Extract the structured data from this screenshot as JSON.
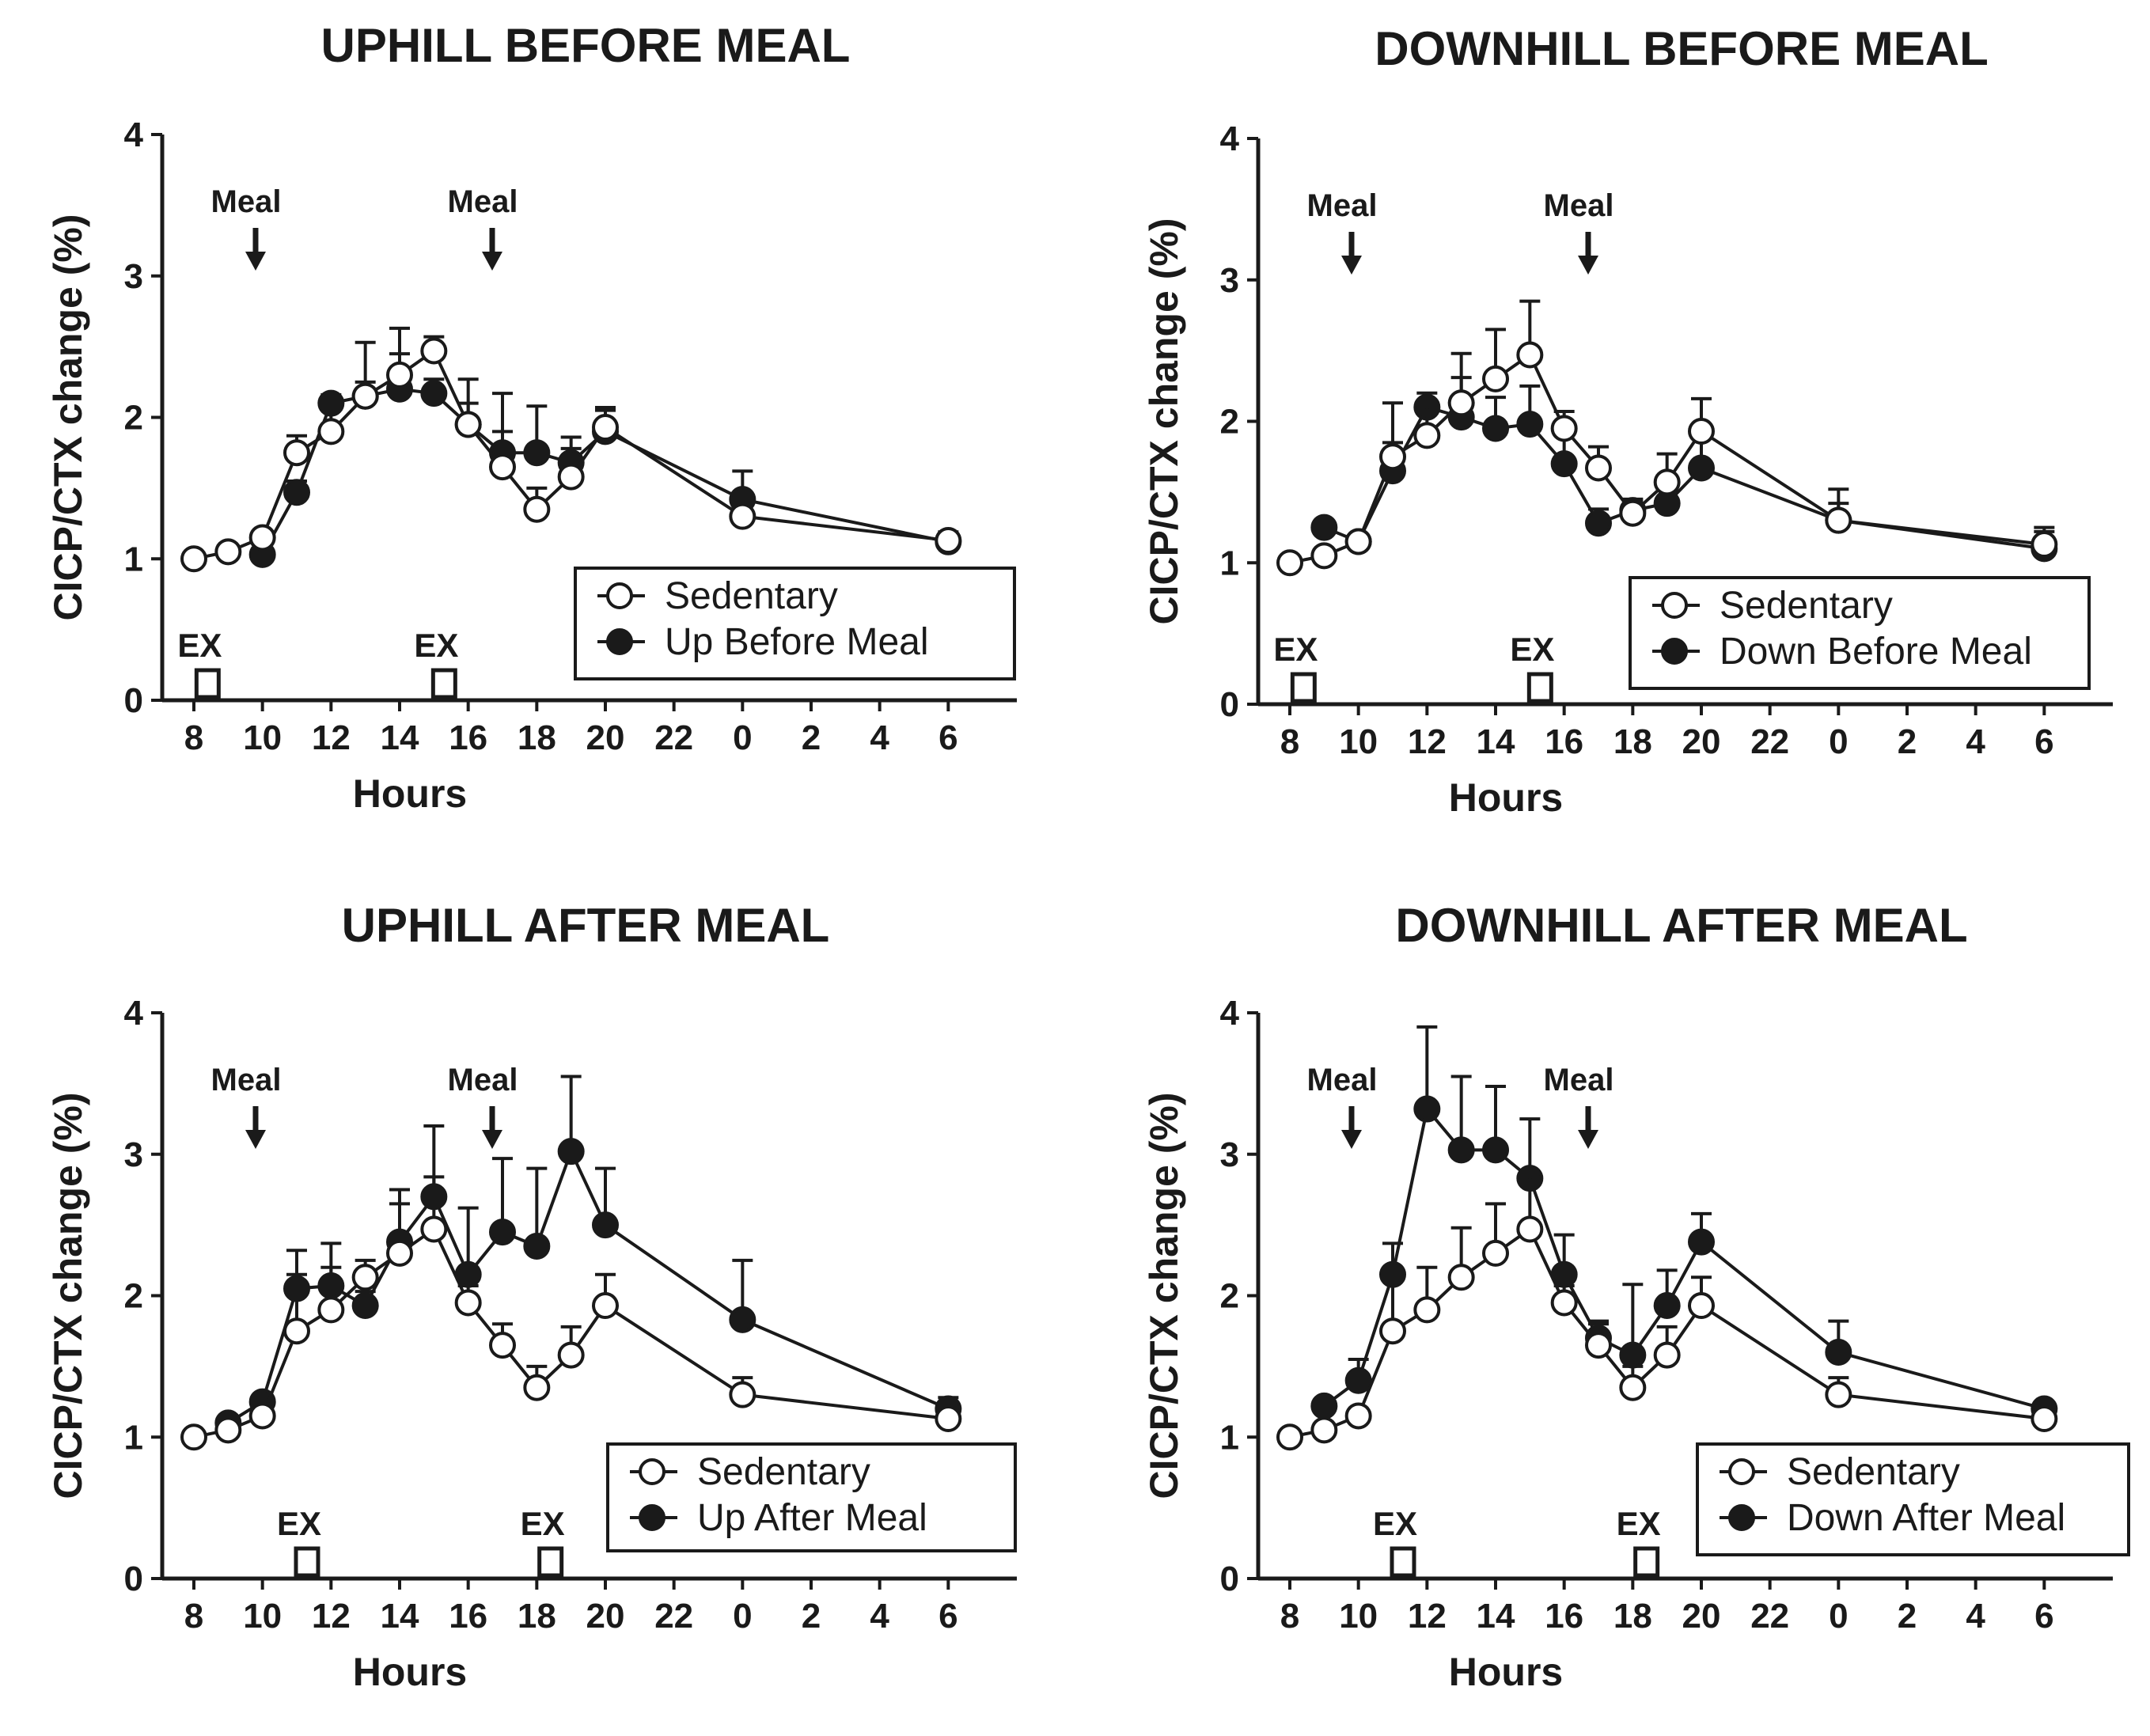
{
  "figure": {
    "panels_count": 4
  },
  "chart_data": [
    {
      "type": "line",
      "title": "UPHILL BEFORE MEAL",
      "xlabel": "Hours",
      "ylabel": "CICP/CTX change (%)",
      "ylim": [
        0,
        4
      ],
      "y_ticks": [
        "0",
        "1",
        "2",
        "3",
        "4"
      ],
      "x_ticks": [
        "8",
        "10",
        "12",
        "14",
        "16",
        "18",
        "20",
        "22",
        "0",
        "2",
        "4",
        "6"
      ],
      "meal_label": "Meal",
      "meal_times": [
        9.8,
        16.7
      ],
      "ex_label": "EX",
      "ex_times": [
        8.4,
        15.3
      ],
      "series": [
        {
          "name": "Sedentary",
          "marker": "open",
          "x": [
            8,
            9,
            10,
            11,
            12,
            13,
            14,
            15,
            16,
            17,
            18,
            19,
            20,
            24,
            30
          ],
          "values": [
            1.0,
            1.05,
            1.15,
            1.75,
            1.9,
            2.15,
            2.3,
            2.47,
            1.95,
            1.65,
            1.35,
            1.58,
            1.93,
            1.3,
            1.13
          ],
          "errors": [
            0,
            0,
            0.05,
            0.12,
            0.22,
            0.38,
            0.33,
            0.1,
            0.15,
            0.25,
            0.15,
            0.2,
            0.12,
            0.15,
            0.06
          ]
        },
        {
          "name": "Up Before Meal",
          "marker": "filled",
          "x": [
            10,
            11,
            12,
            13,
            14,
            15,
            16,
            17,
            18,
            19,
            20,
            24,
            30
          ],
          "values": [
            1.03,
            1.47,
            2.1,
            2.15,
            2.2,
            2.17,
            1.95,
            1.75,
            1.75,
            1.68,
            1.9,
            1.42,
            1.12
          ],
          "errors": [
            0.03,
            0.08,
            0.06,
            0.1,
            0.25,
            0.1,
            0.32,
            0.42,
            0.33,
            0.18,
            0.17,
            0.2,
            0.05
          ]
        }
      ]
    },
    {
      "type": "line",
      "title": "DOWNHILL BEFORE MEAL",
      "xlabel": "Hours",
      "ylabel": "CICP/CTX change (%)",
      "ylim": [
        0,
        4
      ],
      "y_ticks": [
        "0",
        "1",
        "2",
        "3",
        "4"
      ],
      "x_ticks": [
        "8",
        "10",
        "12",
        "14",
        "16",
        "18",
        "20",
        "22",
        "0",
        "2",
        "4",
        "6"
      ],
      "meal_label": "Meal",
      "meal_times": [
        9.8,
        16.7
      ],
      "ex_label": "EX",
      "ex_times": [
        8.4,
        15.3
      ],
      "series": [
        {
          "name": "Sedentary",
          "marker": "open",
          "x": [
            8,
            9,
            10,
            11,
            12,
            13,
            14,
            15,
            16,
            17,
            18,
            19,
            20,
            24,
            30
          ],
          "values": [
            1.0,
            1.05,
            1.15,
            1.75,
            1.9,
            2.13,
            2.3,
            2.47,
            1.95,
            1.67,
            1.35,
            1.57,
            1.93,
            1.3,
            1.13
          ],
          "errors": [
            0,
            0,
            0.05,
            0.38,
            0.2,
            0.35,
            0.35,
            0.38,
            0.12,
            0.15,
            0.08,
            0.2,
            0.23,
            0.22,
            0.12
          ]
        },
        {
          "name": "Down Before Meal",
          "marker": "filled",
          "x": [
            9,
            10,
            11,
            12,
            13,
            14,
            15,
            16,
            17,
            18,
            19,
            20,
            24,
            30
          ],
          "values": [
            1.25,
            1.15,
            1.65,
            2.1,
            2.03,
            1.95,
            1.98,
            1.7,
            1.28,
            1.37,
            1.42,
            1.67,
            1.3,
            1.1
          ],
          "errors": [
            0.05,
            0.05,
            0.2,
            0.1,
            0.28,
            0.22,
            0.27,
            0.2,
            0.1,
            0.08,
            0.1,
            0.22,
            0.12,
            0.12
          ]
        }
      ]
    },
    {
      "type": "line",
      "title": "UPHILL AFTER MEAL",
      "xlabel": "Hours",
      "ylabel": "CICP/CTX change (%)",
      "ylim": [
        0,
        4
      ],
      "y_ticks": [
        "0",
        "1",
        "2",
        "3",
        "4"
      ],
      "x_ticks": [
        "8",
        "10",
        "12",
        "14",
        "16",
        "18",
        "20",
        "22",
        "0",
        "2",
        "4",
        "6"
      ],
      "meal_label": "Meal",
      "meal_times": [
        9.8,
        16.7
      ],
      "ex_label": "EX",
      "ex_times": [
        11.3,
        18.4
      ],
      "series": [
        {
          "name": "Sedentary",
          "marker": "open",
          "x": [
            8,
            9,
            10,
            11,
            12,
            13,
            14,
            15,
            16,
            17,
            18,
            19,
            20,
            24,
            30
          ],
          "values": [
            1.0,
            1.05,
            1.15,
            1.75,
            1.9,
            2.13,
            2.3,
            2.47,
            1.95,
            1.65,
            1.35,
            1.58,
            1.93,
            1.3,
            1.13
          ],
          "errors": [
            0,
            0,
            0.05,
            0.4,
            0.3,
            0.12,
            0.35,
            0.37,
            0.12,
            0.15,
            0.15,
            0.2,
            0.22,
            0.12,
            0.06
          ]
        },
        {
          "name": "Up After Meal",
          "marker": "filled",
          "x": [
            9,
            10,
            11,
            12,
            13,
            14,
            15,
            16,
            17,
            18,
            19,
            20,
            24,
            30
          ],
          "values": [
            1.1,
            1.25,
            2.05,
            2.07,
            1.93,
            2.38,
            2.7,
            2.15,
            2.45,
            2.35,
            3.02,
            2.5,
            1.83,
            1.2
          ],
          "errors": [
            0.03,
            0.05,
            0.27,
            0.3,
            0.1,
            0.37,
            0.5,
            0.47,
            0.52,
            0.55,
            0.53,
            0.4,
            0.42,
            0.08
          ]
        }
      ]
    },
    {
      "type": "line",
      "title": "DOWNHILL AFTER MEAL",
      "xlabel": "Hours",
      "ylabel": "CICP/CTX change (%)",
      "ylim": [
        0,
        4
      ],
      "y_ticks": [
        "0",
        "1",
        "2",
        "3",
        "4"
      ],
      "x_ticks": [
        "8",
        "10",
        "12",
        "14",
        "16",
        "18",
        "20",
        "22",
        "0",
        "2",
        "4",
        "6"
      ],
      "meal_label": "Meal",
      "meal_times": [
        9.8,
        16.7
      ],
      "ex_label": "EX",
      "ex_times": [
        11.3,
        18.4
      ],
      "series": [
        {
          "name": "Sedentary",
          "marker": "open",
          "x": [
            8,
            9,
            10,
            11,
            12,
            13,
            14,
            15,
            16,
            17,
            18,
            19,
            20,
            24,
            30
          ],
          "values": [
            1.0,
            1.05,
            1.15,
            1.75,
            1.9,
            2.13,
            2.3,
            2.47,
            1.95,
            1.65,
            1.35,
            1.58,
            1.93,
            1.3,
            1.13
          ],
          "errors": [
            0,
            0,
            0.05,
            0.4,
            0.3,
            0.35,
            0.35,
            0.37,
            0.12,
            0.15,
            0.15,
            0.2,
            0.2,
            0.12,
            0.06
          ]
        },
        {
          "name": "Down After Meal",
          "marker": "filled",
          "x": [
            9,
            10,
            11,
            12,
            13,
            14,
            15,
            16,
            17,
            18,
            19,
            20,
            24,
            30
          ],
          "values": [
            1.22,
            1.4,
            2.15,
            3.32,
            3.03,
            3.03,
            2.83,
            2.15,
            1.7,
            1.58,
            1.93,
            2.38,
            1.6,
            1.2
          ],
          "errors": [
            0.05,
            0.15,
            0.22,
            0.58,
            0.52,
            0.45,
            0.42,
            0.28,
            0.12,
            0.5,
            0.25,
            0.2,
            0.22,
            0.05
          ]
        }
      ]
    }
  ]
}
